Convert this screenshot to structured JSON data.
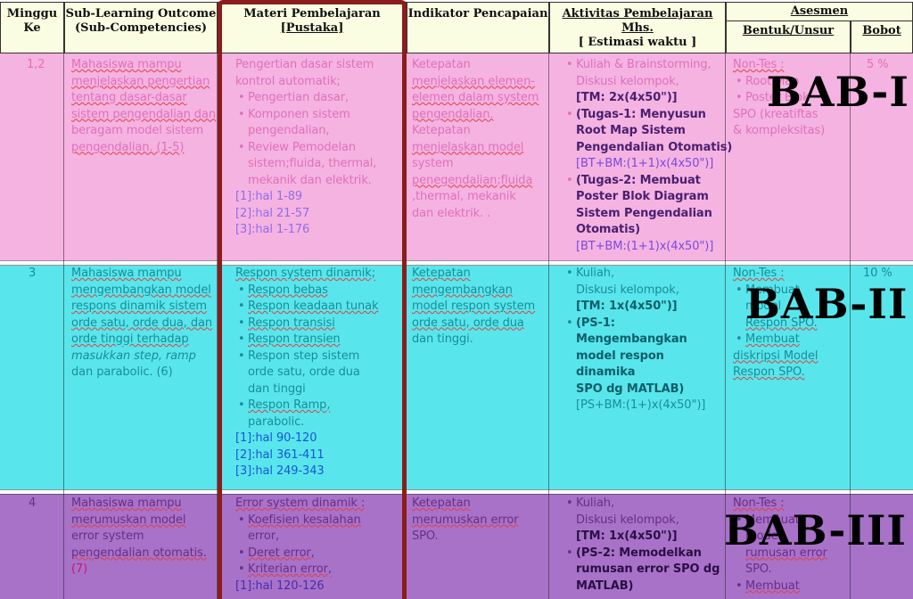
{
  "header": {
    "minggu": [
      "Minggu",
      "Ke"
    ],
    "sub_learning": [
      "Sub-Learning Outcome",
      "(Sub-Competencies)"
    ],
    "materi": [
      "Materi Pembelajaran",
      "[Pustaka]"
    ],
    "indikator": "Indikator Pencapaian",
    "aktivitas": [
      "Aktivitas Pembelajaran",
      "Mhs.",
      "[ Estimasi waktu ]"
    ],
    "asesmen": "Asesmen",
    "bentuk": "Bentuk/Unsur",
    "bobot": "Bobot"
  },
  "rows": [
    {
      "minggu": "1,2",
      "sub_learning": [
        "Mahasiswa mampu",
        "menjelaskan pengertian",
        "tentang dasar-dasar",
        "sistem pengendalian dan",
        "beragam model sistem",
        "pengendalian. (1-5)"
      ],
      "materi_intro": [
        "Pengertian dasar sistem",
        "kontrol automatik;"
      ],
      "materi_items": [
        [
          "Pengertian dasar,"
        ],
        [
          "Komponen sistem",
          "pengendalian,"
        ],
        [
          "Review Pemodelan",
          "sistem;fluida, thermal,",
          "mekanik dan elektrik."
        ]
      ],
      "refs": [
        "[1]:hal 1-89",
        "[2]:hal 21-57",
        "[3]:hal 1-176"
      ],
      "indikator": [
        "Ketepatan",
        "menjelaskan elemen-",
        "elemen dalam system",
        "pengendalian.",
        "Ketepatan",
        "menjelaskan model",
        "system",
        "penegendalian;fluida",
        ",thermal, mekanik",
        "dan elektrik. ."
      ],
      "aktivitas": [
        {
          "lines": [
            "Kuliah & Brainstorming,",
            "Diskusi kelompok,"
          ],
          "dark": "[TM: 2x(4x50\")]"
        },
        {
          "lines": [
            "(Tugas-1: Menyusun",
            "Root Map Sistem",
            "Pengendalian Otomatis)"
          ],
          "dark": "[BT+BM:(1+1)x(4x50\")]"
        },
        {
          "lines": [
            "(Tugas-2: Membuat",
            "Poster Blok Diagram",
            "Sistem Pengendalian",
            "Otomatis)"
          ],
          "dark": "[BT+BM:(1+1)x(4x50\")]"
        }
      ],
      "bentuk": [
        "Non-Tes :",
        "Root Map",
        "Poster Blok",
        "SPO (kreatiftas",
        "& kompleksitas)"
      ],
      "bobot": "5 %",
      "bab": "BAB-I"
    },
    {
      "minggu": "3",
      "sub_learning": [
        "Mahasiswa mampu",
        "mengembangkan model",
        "respons dinamik sistem",
        "orde satu, orde dua, dan",
        "orde tinggi terhadap",
        "masukkan step, ramp",
        "dan parabolic. (6)"
      ],
      "materi_intro": [
        "Respon system dinamik;"
      ],
      "materi_items": [
        [
          "Respon bebas"
        ],
        [
          "Respon keadaan tunak"
        ],
        [
          "Respon transisi"
        ],
        [
          "Respon transien"
        ],
        [
          "Respon step sistem",
          "orde satu, orde dua",
          "dan tinggi"
        ],
        [
          "Respon Ramp,",
          "parabolic."
        ]
      ],
      "refs": [
        "[1]:hal 90-120",
        "[2]:hal 361-411",
        "[3]:hal 249-343"
      ],
      "indikator": [
        "Ketepatan",
        "mengembangkan",
        "model respon system",
        "orde satu, orde dua",
        "dan tinggi."
      ],
      "aktivitas": [
        {
          "lines": [
            "Kuliah,",
            "Diskusi kelompok,"
          ],
          "dark": "[TM: 1x(4x50\")]"
        },
        {
          "lines": [
            "(PS-1: Mengembangkan",
            "model respon dinamika",
            "SPO dg MATLAB)"
          ],
          "dark": "[PS+BM:(1+)x(4x50\")]"
        }
      ],
      "bentuk": [
        "Non-Tes :",
        "Membuat",
        "model",
        "Respon SPO.",
        "Membuat",
        "diskripsi Model",
        "Respon SPO."
      ],
      "bobot": "10 %",
      "bab": "BAB-II"
    },
    {
      "minggu": "4",
      "sub_learning": [
        "Mahasiswa mampu",
        "merumuskan model",
        "error system",
        "pengendalian otomatis.",
        "(7)"
      ],
      "materi_intro": [
        "Error system dinamik :"
      ],
      "materi_items": [
        [
          "Koefisien kesalahan",
          "error,"
        ],
        [
          "Deret error,"
        ],
        [
          "Kriterian error,"
        ]
      ],
      "refs": [
        "[1]:hal 120-126"
      ],
      "indikator": [
        "Ketepatan",
        "merumuskan error",
        "SPO."
      ],
      "aktivitas": [
        {
          "lines": [
            "Kuliah,",
            "Diskusi kelompok,"
          ],
          "dark": "[TM: 1x(4x50\")]"
        },
        {
          "lines": [
            "(PS-2: Memodelkan",
            "rumusan error SPO dg",
            "MATLAB)"
          ],
          "dark": ""
        }
      ],
      "bentuk": [
        "Non-Tes :",
        "Membuat",
        "model",
        "rumusan error",
        "SPO.",
        "Membuat"
      ],
      "bobot": "",
      "bab": "BAB-III"
    }
  ]
}
